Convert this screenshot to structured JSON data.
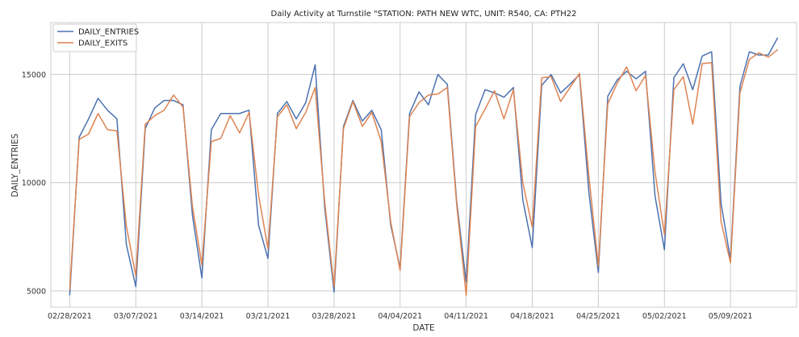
{
  "chart_data": {
    "type": "line",
    "title": "Daily Activity at Turnstile \"STATION: PATH NEW WTC, UNIT: R540, CA: PTH22",
    "xlabel": "DATE",
    "ylabel": "DAILY_ENTRIES",
    "ylim": [
      4250,
      17400
    ],
    "yticks": [
      5000,
      10000,
      15000
    ],
    "x_start": "2021-02-28",
    "x_end": "2021-05-13",
    "xlim": [
      "2021-02-26",
      "2021-05-16"
    ],
    "xticks": [
      "2021-02-28",
      "2021-03-07",
      "2021-03-14",
      "2021-03-21",
      "2021-03-28",
      "2021-04-04",
      "2021-04-11",
      "2021-04-18",
      "2021-04-25",
      "2021-05-02",
      "2021-05-09"
    ],
    "xtick_labels": [
      "02/28/2021",
      "03/07/2021",
      "03/14/2021",
      "03/21/2021",
      "03/28/2021",
      "04/04/2021",
      "04/11/2021",
      "04/18/2021",
      "04/25/2021",
      "05/02/2021",
      "05/09/2021"
    ],
    "grid": true,
    "legend_position": "top-left",
    "series": [
      {
        "name": "DAILY_ENTRIES",
        "color": "#4c72b0",
        "values": [
          4800,
          12100,
          12950,
          13900,
          13350,
          12950,
          7150,
          5200,
          12500,
          13450,
          13800,
          13800,
          13600,
          8500,
          5600,
          12450,
          13200,
          13200,
          13200,
          13350,
          8050,
          6500,
          13200,
          13750,
          12950,
          13700,
          15450,
          8900,
          4950,
          12600,
          13800,
          12850,
          13350,
          12450,
          8050,
          6050,
          13200,
          14200,
          13600,
          15000,
          14550,
          9100,
          5400,
          13150,
          14300,
          14150,
          13950,
          14400,
          9200,
          7000,
          14500,
          15000,
          14150,
          14550,
          15000,
          9550,
          5850,
          14000,
          14750,
          15150,
          14800,
          15150,
          9400,
          6900,
          14850,
          15500,
          14300,
          15850,
          16050,
          9050,
          6450,
          14450,
          16050,
          15900,
          15900,
          16700
        ]
      },
      {
        "name": "DAILY_EXITS",
        "color": "#dd8452",
        "values": [
          5050,
          12000,
          12250,
          13200,
          12450,
          12400,
          8000,
          5700,
          12700,
          13100,
          13350,
          14050,
          13500,
          8900,
          6200,
          11900,
          12050,
          13100,
          12300,
          13250,
          9450,
          6950,
          13050,
          13600,
          12500,
          13250,
          14400,
          9150,
          5200,
          12500,
          13750,
          12600,
          13250,
          11900,
          8200,
          5950,
          13050,
          13700,
          14050,
          14100,
          14400,
          8950,
          4800,
          12600,
          13400,
          14250,
          12950,
          14300,
          10000,
          7950,
          14850,
          14900,
          13750,
          14400,
          15050,
          10300,
          6150,
          13650,
          14600,
          15350,
          14250,
          14950,
          10500,
          7600,
          14300,
          14900,
          12700,
          15500,
          15550,
          8200,
          6300,
          14150,
          15700,
          16000,
          15800,
          16150
        ]
      }
    ]
  }
}
